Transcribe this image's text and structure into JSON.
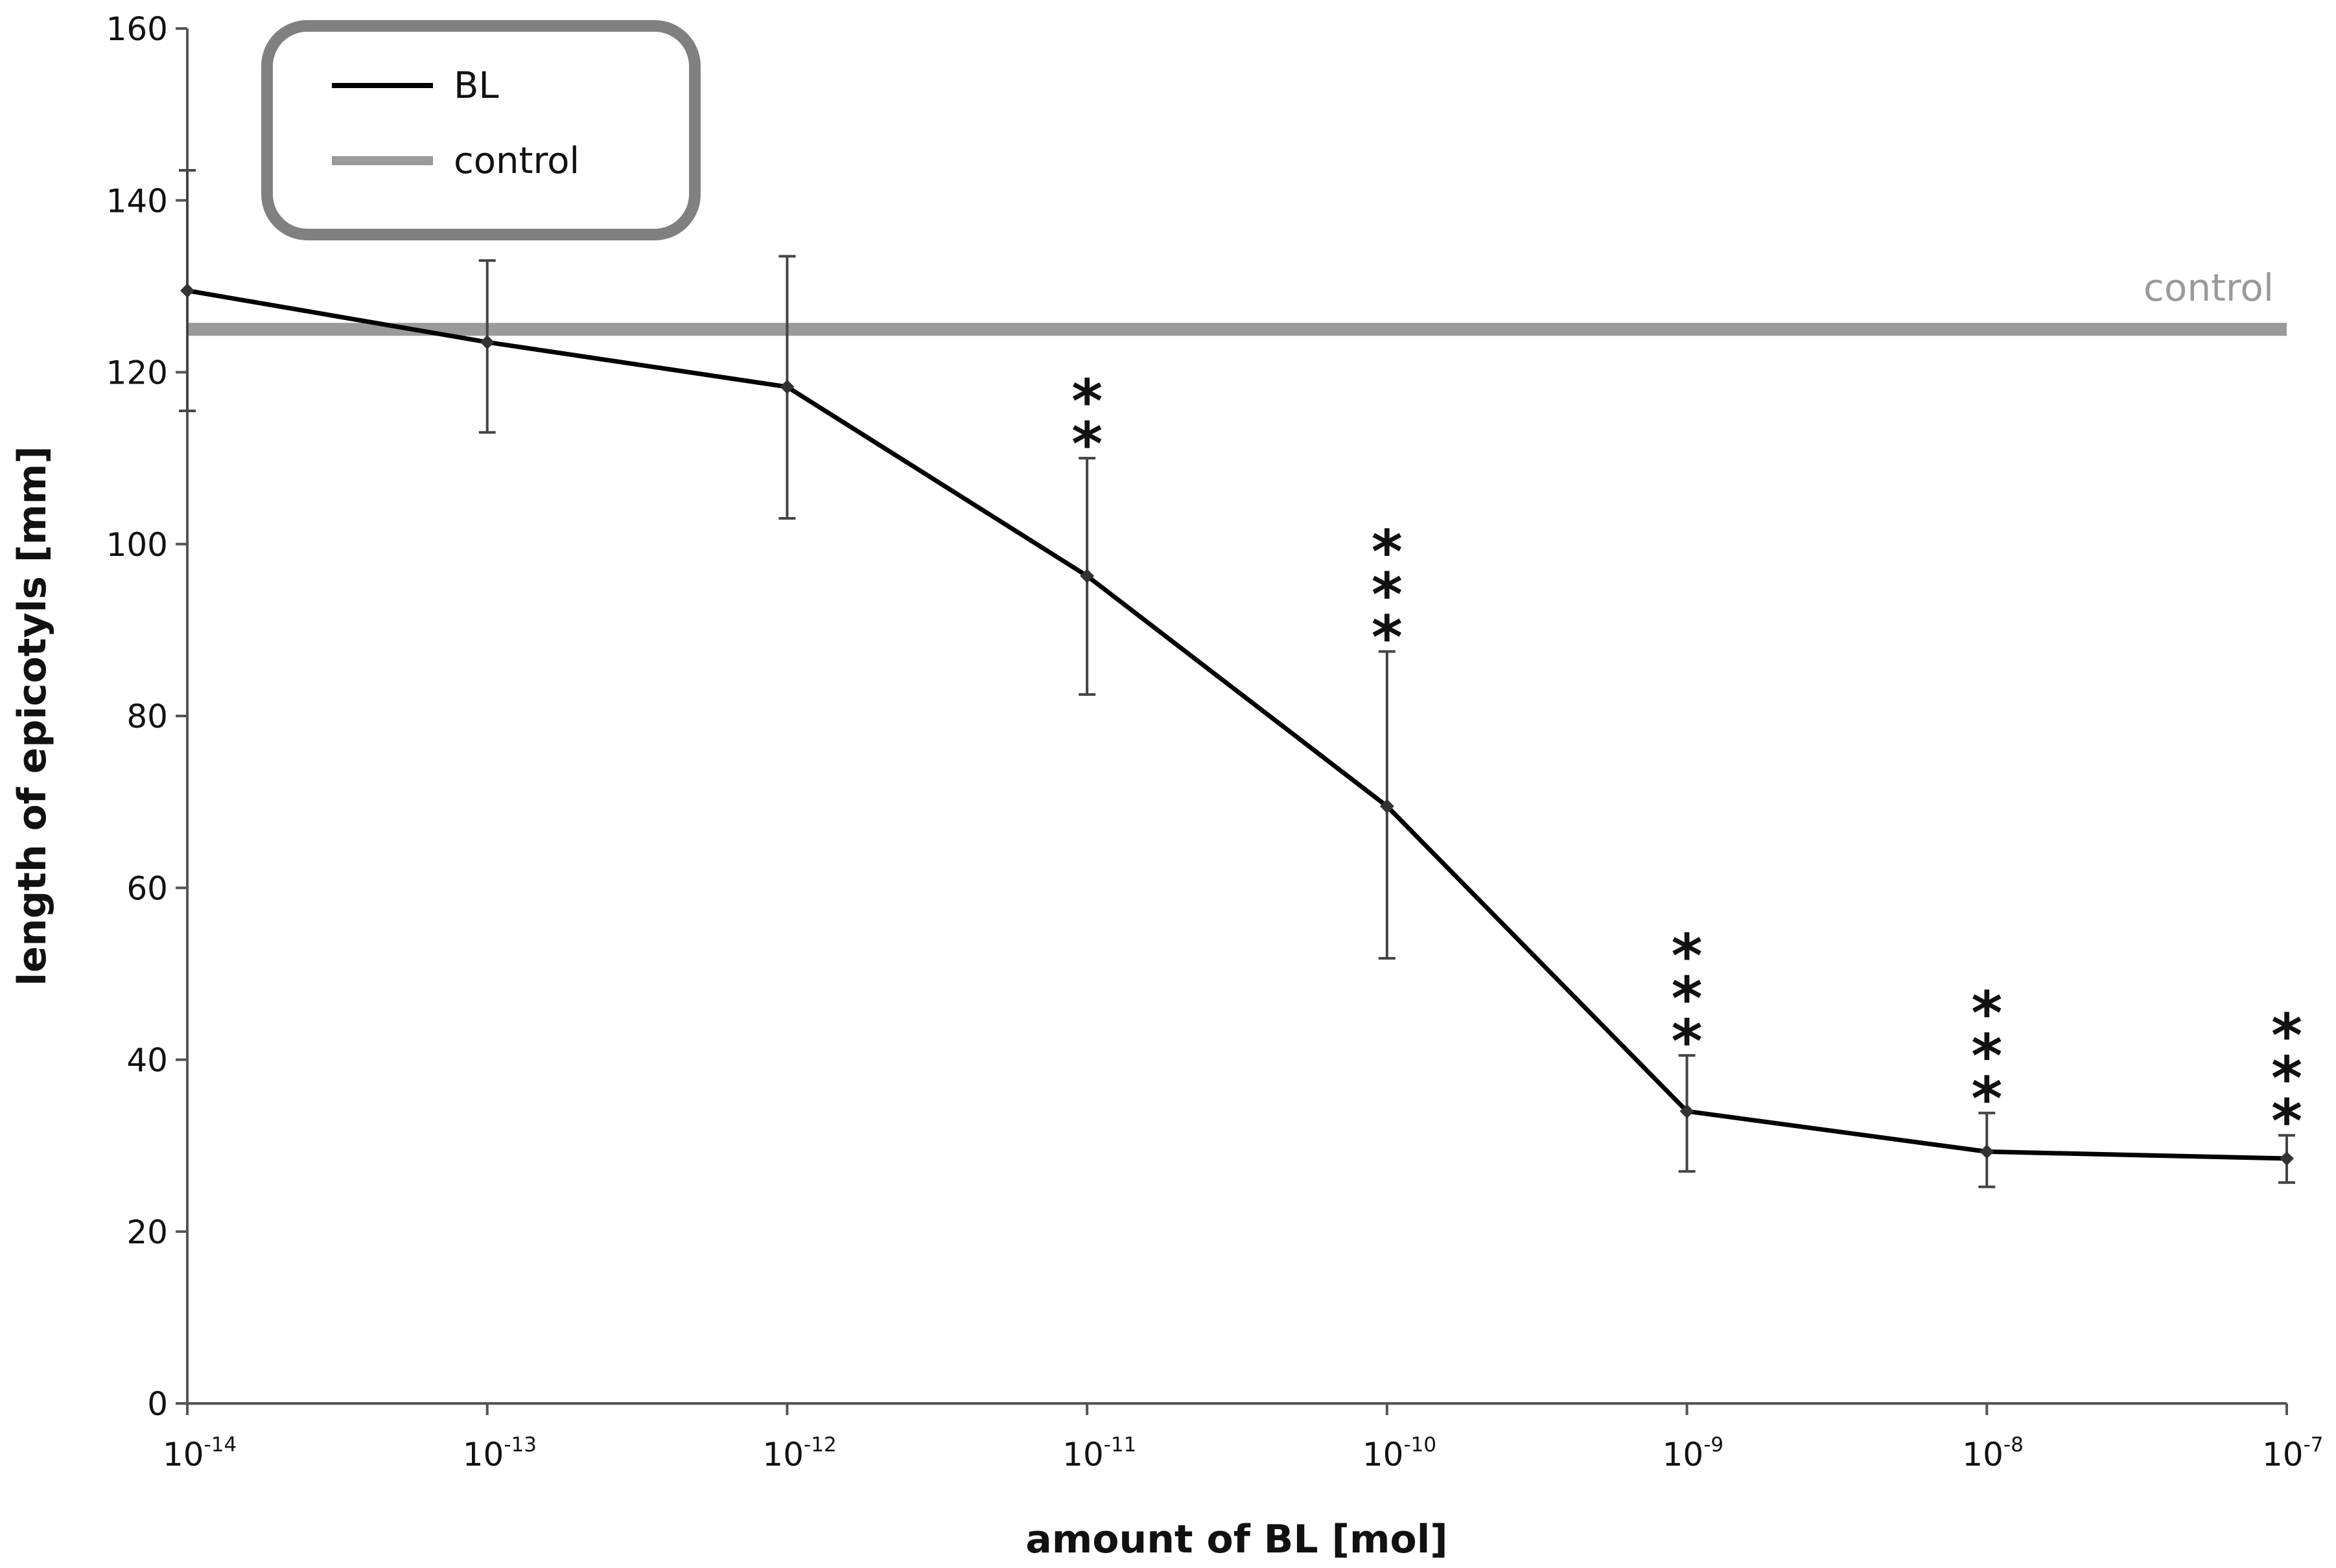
{
  "chart_data": {
    "type": "line",
    "title": "",
    "xlabel": "amount of BL [mol]",
    "ylabel": "length of epicotyls  [mm]",
    "x_scale": "log10",
    "x_ticks": [
      {
        "base": "10",
        "exp": "-14",
        "value": -14
      },
      {
        "base": "10",
        "exp": "-13",
        "value": -13
      },
      {
        "base": "10",
        "exp": "-12",
        "value": -12
      },
      {
        "base": "10",
        "exp": "-11",
        "value": -11
      },
      {
        "base": "10",
        "exp": "-10",
        "value": -10
      },
      {
        "base": "10",
        "exp": "-9",
        "value": -9
      },
      {
        "base": "10",
        "exp": "-8",
        "value": -8
      },
      {
        "base": "10",
        "exp": "-7",
        "value": -7
      }
    ],
    "ylim": [
      0,
      160
    ],
    "y_ticks": [
      "0",
      "20",
      "40",
      "60",
      "80",
      "100",
      "120",
      "140",
      "160"
    ],
    "grid": false,
    "legend": {
      "position": "top-left",
      "entries": [
        {
          "label": "BL",
          "color": "#000000"
        },
        {
          "label": "control",
          "color": "#9a9a9a"
        }
      ]
    },
    "series": [
      {
        "name": "BL",
        "color": "#000000",
        "points": [
          {
            "log_x": -14,
            "y": 129.5,
            "err_low": 115.5,
            "err_high": 143.5,
            "sig": ""
          },
          {
            "log_x": -13,
            "y": 123.5,
            "err_low": 113,
            "err_high": 133,
            "sig": ""
          },
          {
            "log_x": -12,
            "y": 118.3,
            "err_low": 103,
            "err_high": 133.5,
            "sig": ""
          },
          {
            "log_x": -11,
            "y": 96.3,
            "err_low": 82.5,
            "err_high": 110,
            "sig": "**"
          },
          {
            "log_x": -10,
            "y": 69.5,
            "err_low": 51.8,
            "err_high": 87.5,
            "sig": "***"
          },
          {
            "log_x": -9,
            "y": 34,
            "err_low": 27,
            "err_high": 40.5,
            "sig": "***"
          },
          {
            "log_x": -8,
            "y": 29.3,
            "err_low": 25.2,
            "err_high": 33.8,
            "sig": "***"
          },
          {
            "log_x": -7,
            "y": 28.5,
            "err_low": 25.7,
            "err_high": 31.2,
            "sig": "***"
          }
        ]
      },
      {
        "name": "control",
        "color": "#9a9a9a",
        "constant_y": 125,
        "annotation": "control"
      }
    ]
  }
}
